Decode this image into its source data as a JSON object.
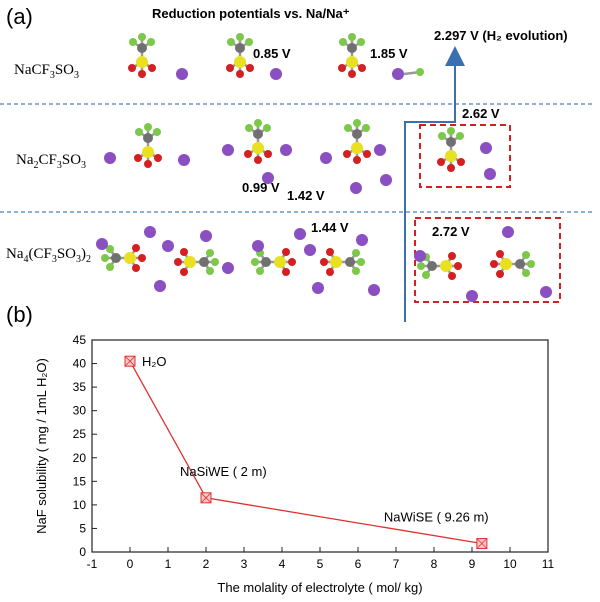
{
  "panel_a": {
    "label": "(a)",
    "title": "Reduction potentials vs. Na/Na⁺",
    "rows": [
      {
        "name_main": "NaCF",
        "sub1": "3",
        "mid": "SO",
        "sub2": "3",
        "tail": "",
        "potentials": [
          "0.85 V",
          "1.85 V"
        ]
      },
      {
        "name_main": "Na",
        "sub1": "2",
        "mid": "CF",
        "sub2": "3",
        "tail": "SO",
        "sub3": "3",
        "potentials": [
          "0.99 V",
          "1.42 V",
          "2.62 V"
        ]
      },
      {
        "name_main": "Na",
        "sub1": "4",
        "mid": "(CF",
        "sub2": "3",
        "tail": "SO",
        "sub3": "3",
        "close": ")",
        "sub4": "2",
        "potentials": [
          "1.44 V",
          "2.72 V"
        ]
      }
    ],
    "h2_label": "2.297 V (H₂ evolution)"
  },
  "panel_b": {
    "label": "(b)",
    "chart_data": {
      "type": "line",
      "xlabel": "The molality of electrolyte ( mol/ kg)",
      "ylabel": "NaF solubility ( mg / 1mL H₂O)",
      "xlim": [
        -1,
        11
      ],
      "ylim": [
        0,
        45
      ],
      "x_ticks": [
        "-1",
        "0",
        "1",
        "2",
        "3",
        "4",
        "5",
        "6",
        "7",
        "8",
        "9",
        "10",
        "11"
      ],
      "y_ticks": [
        "0",
        "5",
        "10",
        "15",
        "20",
        "25",
        "30",
        "35",
        "40",
        "45"
      ],
      "grid": false,
      "points": [
        {
          "x": 0,
          "y": 40.5,
          "label": "H₂O"
        },
        {
          "x": 2,
          "y": 11.5,
          "label": "NaSiWE ( 2 m)"
        },
        {
          "x": 9.26,
          "y": 1.8,
          "label": "NaWiSE ( 9.26 m)"
        }
      ],
      "color": "#e03030"
    }
  },
  "colors": {
    "sodium": "#8a4fc0",
    "sulfur": "#e8e020",
    "oxygen": "#d42020",
    "fluorine": "#7cc84a",
    "carbon": "#707070",
    "divider": "#4a7fc0",
    "box": "#d42020",
    "arrow": "#3a6fb0"
  }
}
